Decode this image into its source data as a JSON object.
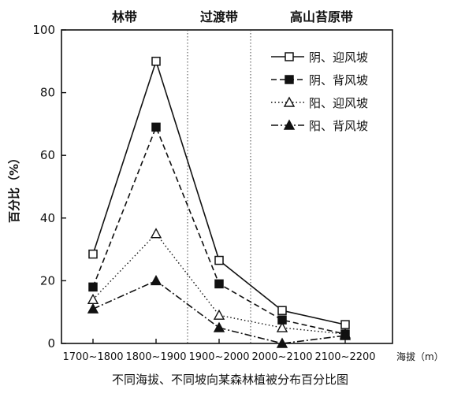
{
  "caption": "不同海拔、不同坡向某森林植被分布百分比图",
  "chart_data": {
    "type": "line",
    "xlabel": "海拔（m）",
    "ylabel": "百分比（%）",
    "ylim": [
      0,
      100
    ],
    "yticks": [
      0,
      20,
      40,
      60,
      80,
      100
    ],
    "categories": [
      "1700~1800",
      "1800~1900",
      "1900~2000",
      "2000~2100",
      "2100~2200"
    ],
    "zones": [
      {
        "label": "林带",
        "from": 0,
        "to": 1.5
      },
      {
        "label": "过渡带",
        "from": 1.5,
        "to": 2.5
      },
      {
        "label": "高山苔原带",
        "from": 2.5,
        "to": 4.6
      }
    ],
    "legend_position": "top-right",
    "series": [
      {
        "name": "阴、迎风坡",
        "line": "solid",
        "marker": "open-square",
        "values": [
          28.5,
          90,
          26.5,
          10.5,
          6
        ]
      },
      {
        "name": "阴、背风坡",
        "line": "dashed",
        "marker": "filled-square",
        "values": [
          18,
          69,
          19,
          7.5,
          3
        ]
      },
      {
        "name": "阳、迎风坡",
        "line": "dotted",
        "marker": "open-triangle",
        "values": [
          14,
          35,
          9,
          5,
          3
        ]
      },
      {
        "name": "阳、背风坡",
        "line": "dashdot",
        "marker": "filled-triangle",
        "values": [
          11,
          20,
          5,
          0,
          2.5
        ]
      }
    ]
  }
}
